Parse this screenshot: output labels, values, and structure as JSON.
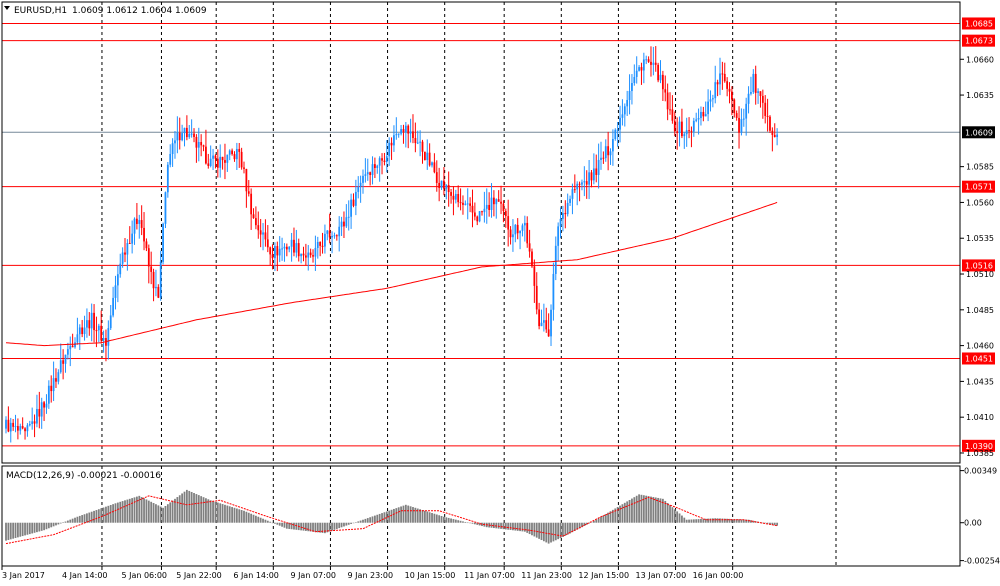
{
  "symbol_header": {
    "symbol": "EURUSD,H1",
    "ohlc": "1.0609 1.0612 1.0604 1.0609"
  },
  "colors": {
    "bull": "#1e90ff",
    "bear": "#ff0000",
    "ma": "#ff0000",
    "level_line": "#ff0000",
    "current_price_line": "#778899",
    "grid": "#000000",
    "macd_hist": "#808080",
    "macd_signal": "#ff0000",
    "background": "#ffffff"
  },
  "chart_data": [
    {
      "type": "candlestick",
      "title": "EURUSD,H1",
      "ylim": [
        1.0378,
        1.07
      ],
      "x_tick_labels": [
        "3 Jan 2017",
        "4 Jan 14:00",
        "5 Jan 06:00",
        "5 Jan 22:00",
        "6 Jan 14:00",
        "9 Jan 07:00",
        "9 Jan 23:00",
        "10 Jan 15:00",
        "11 Jan 07:00",
        "11 Jan 23:00",
        "12 Jan 15:00",
        "13 Jan 07:00",
        "16 Jan 00:00"
      ],
      "y_tick_labels": [
        1.066,
        1.0635,
        1.0585,
        1.056,
        1.0535,
        1.051,
        1.0485,
        1.046,
        1.0435,
        1.041,
        1.0385
      ],
      "horizontal_levels": [
        1.0685,
        1.0673,
        1.0571,
        1.0516,
        1.0451,
        1.039
      ],
      "current_price": 1.0609,
      "grid": "vertical dashed",
      "close_anchors": [
        [
          0,
          1.0405
        ],
        [
          8,
          1.0397
        ],
        [
          16,
          1.042
        ],
        [
          24,
          1.045
        ],
        [
          30,
          1.047
        ],
        [
          36,
          1.0478
        ],
        [
          42,
          1.0462
        ],
        [
          48,
          1.052
        ],
        [
          56,
          1.0552
        ],
        [
          60,
          1.0515
        ],
        [
          64,
          1.0492
        ],
        [
          68,
          1.059
        ],
        [
          74,
          1.0612
        ],
        [
          80,
          1.06
        ],
        [
          86,
          1.0588
        ],
        [
          92,
          1.059
        ],
        [
          98,
          1.0595
        ],
        [
          104,
          1.0548
        ],
        [
          112,
          1.0525
        ],
        [
          120,
          1.0531
        ],
        [
          128,
          1.052
        ],
        [
          134,
          1.0535
        ],
        [
          142,
          1.0545
        ],
        [
          150,
          1.058
        ],
        [
          158,
          1.059
        ],
        [
          166,
          1.0615
        ],
        [
          174,
          1.06
        ],
        [
          182,
          1.0575
        ],
        [
          190,
          1.056
        ],
        [
          198,
          1.055
        ],
        [
          206,
          1.0562
        ],
        [
          212,
          1.054
        ],
        [
          218,
          1.0545
        ],
        [
          224,
          1.0478
        ],
        [
          228,
          1.047
        ],
        [
          232,
          1.0545
        ],
        [
          238,
          1.0568
        ],
        [
          246,
          1.0578
        ],
        [
          254,
          1.06
        ],
        [
          262,
          1.064
        ],
        [
          268,
          1.066
        ],
        [
          274,
          1.065
        ],
        [
          280,
          1.0615
        ],
        [
          286,
          1.0608
        ],
        [
          294,
          1.0625
        ],
        [
          300,
          1.0648
        ],
        [
          304,
          1.064
        ],
        [
          308,
          1.0612
        ],
        [
          314,
          1.0645
        ],
        [
          320,
          1.0615
        ],
        [
          324,
          1.0609
        ]
      ],
      "ma_anchors": [
        [
          0,
          1.0462
        ],
        [
          16,
          1.046
        ],
        [
          40,
          1.0462
        ],
        [
          80,
          1.0478
        ],
        [
          120,
          1.049
        ],
        [
          160,
          1.05
        ],
        [
          200,
          1.0515
        ],
        [
          240,
          1.052
        ],
        [
          280,
          1.0535
        ],
        [
          310,
          1.0552
        ],
        [
          324,
          1.056
        ]
      ]
    },
    {
      "type": "bar",
      "title": "MACD(12,26,9) -0.00021 -0.00016",
      "ylim": [
        -0.0029,
        0.0038
      ],
      "y_tick_labels": [
        "0.00349",
        "0.00",
        "-0.00254"
      ],
      "hist_anchors": [
        [
          0,
          -0.0012
        ],
        [
          16,
          -0.0005
        ],
        [
          30,
          0.0004
        ],
        [
          46,
          0.0013
        ],
        [
          56,
          0.0018
        ],
        [
          66,
          0.001
        ],
        [
          76,
          0.0022
        ],
        [
          86,
          0.0015
        ],
        [
          100,
          0.0008
        ],
        [
          118,
          -0.0004
        ],
        [
          134,
          -0.0007
        ],
        [
          150,
          0.0002
        ],
        [
          168,
          0.0012
        ],
        [
          184,
          0.0004
        ],
        [
          202,
          -0.0003
        ],
        [
          218,
          -0.0006
        ],
        [
          228,
          -0.0014
        ],
        [
          236,
          -0.0008
        ],
        [
          248,
          0.0002
        ],
        [
          266,
          0.0019
        ],
        [
          276,
          0.0016
        ],
        [
          286,
          0.0002
        ],
        [
          298,
          0.0003
        ],
        [
          312,
          0.0002
        ],
        [
          324,
          -0.0002
        ]
      ],
      "signal_anchors": [
        [
          0,
          -0.0014
        ],
        [
          20,
          -0.0008
        ],
        [
          40,
          0.0004
        ],
        [
          60,
          0.0018
        ],
        [
          76,
          0.0012
        ],
        [
          90,
          0.0015
        ],
        [
          110,
          0.0004
        ],
        [
          130,
          -0.0006
        ],
        [
          150,
          -0.0004
        ],
        [
          166,
          0.0008
        ],
        [
          182,
          0.0008
        ],
        [
          200,
          -0.0001
        ],
        [
          220,
          -0.0005
        ],
        [
          234,
          -0.0009
        ],
        [
          250,
          0.0004
        ],
        [
          270,
          0.0017
        ],
        [
          282,
          0.001
        ],
        [
          294,
          0.0002
        ],
        [
          310,
          0.0002
        ],
        [
          324,
          -0.0002
        ]
      ]
    }
  ]
}
